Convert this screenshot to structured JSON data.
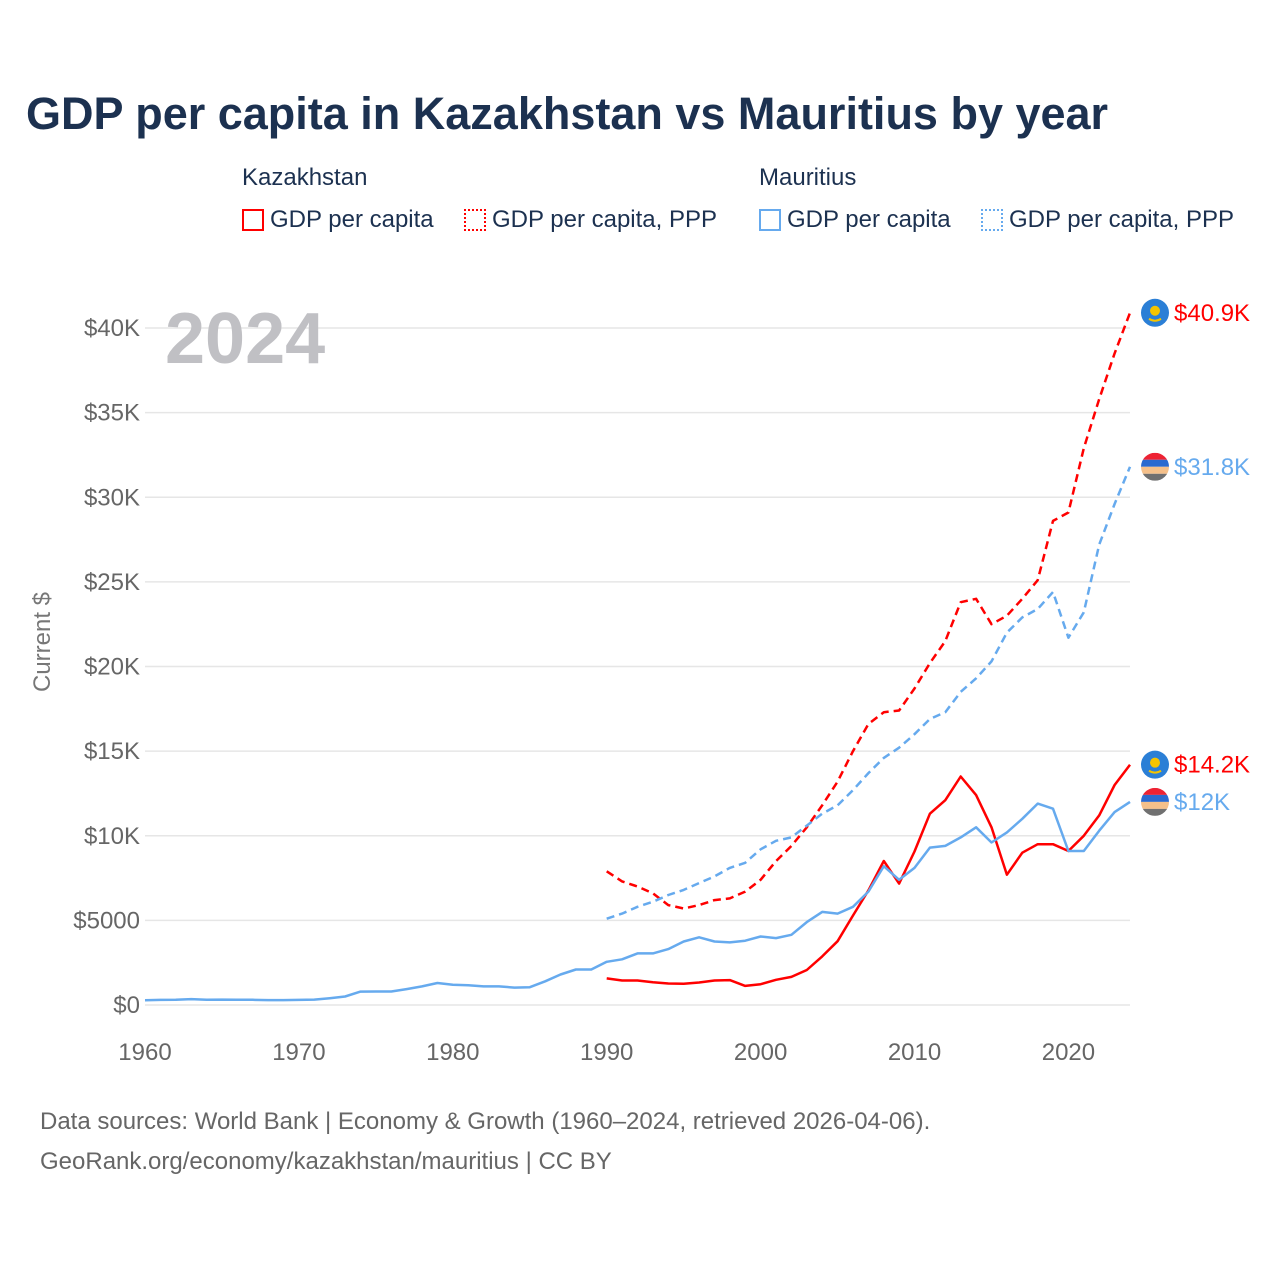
{
  "title": "GDP per capita in Kazakhstan vs Mauritius by year",
  "legend": {
    "groups": [
      {
        "name": "Kazakhstan",
        "items": [
          "GDP per capita",
          "GDP per capita, PPP"
        ]
      },
      {
        "name": "Mauritius",
        "items": [
          "GDP per capita",
          "GDP per capita, PPP"
        ]
      }
    ]
  },
  "year_label": "2024",
  "sources": [
    "Data sources: World Bank | Economy & Growth (1960–2024, retrieved 2026-04-06).",
    "GeoRank.org/economy/kazakhstan/mauritius | CC BY"
  ],
  "colors": {
    "kazakhstan": "#ff0000",
    "mauritius": "#66aaee"
  },
  "chart_data": {
    "type": "line",
    "title": "GDP per capita in Kazakhstan vs Mauritius by year",
    "xlabel": "",
    "ylabel": "Current $",
    "xlim": [
      1960,
      2024
    ],
    "ylim": [
      0,
      40000
    ],
    "xticks": [
      1960,
      1970,
      1980,
      1990,
      2000,
      2010,
      2020
    ],
    "xtick_labels": [
      "1960",
      "1970",
      "1980",
      "1990",
      "2000",
      "2010",
      "2020"
    ],
    "yticks": [
      0,
      5000,
      10000,
      15000,
      20000,
      25000,
      30000,
      35000,
      40000
    ],
    "ytick_labels": [
      "$0",
      "$5000",
      "$10K",
      "$15K",
      "$20K",
      "$25K",
      "$30K",
      "$35K",
      "$40K"
    ],
    "grid": true,
    "series": [
      {
        "name": "Kazakhstan GDP per capita",
        "country": "kazakhstan",
        "dash": false,
        "start": 1990,
        "end_label": "$14.2K",
        "values": [
          1570,
          1450,
          1450,
          1350,
          1270,
          1250,
          1330,
          1450,
          1470,
          1130,
          1230,
          1490,
          1660,
          2070,
          2870,
          3770,
          5290,
          6770,
          8510,
          7170,
          9070,
          11300,
          12100,
          13500,
          12400,
          10500,
          7700,
          9000,
          9500,
          9500,
          9100,
          10000,
          11200,
          13000,
          14200
        ]
      },
      {
        "name": "Kazakhstan GDP per capita, PPP",
        "country": "kazakhstan",
        "dash": true,
        "start": 1990,
        "end_label": "$40.9K",
        "values": [
          7900,
          7300,
          7000,
          6600,
          5900,
          5700,
          5900,
          6200,
          6300,
          6700,
          7400,
          8500,
          9400,
          10500,
          11800,
          13200,
          15000,
          16600,
          17300,
          17400,
          18700,
          20200,
          21500,
          23800,
          24000,
          22500,
          23000,
          24000,
          25100,
          28600,
          29100,
          32900,
          35800,
          38500,
          40900
        ]
      },
      {
        "name": "Mauritius GDP per capita",
        "country": "mauritius",
        "dash": false,
        "start": 1960,
        "end_label": "$12K",
        "values": [
          280,
          300,
          310,
          350,
          310,
          320,
          310,
          310,
          290,
          290,
          300,
          320,
          400,
          500,
          790,
          800,
          800,
          940,
          1100,
          1300,
          1200,
          1170,
          1100,
          1100,
          1030,
          1050,
          1400,
          1800,
          2100,
          2100,
          2550,
          2700,
          3050,
          3050,
          3300,
          3750,
          4000,
          3750,
          3700,
          3800,
          4050,
          3950,
          4150,
          4900,
          5500,
          5400,
          5800,
          6700,
          8200,
          7400,
          8100,
          9300,
          9400,
          9900,
          10500,
          9600,
          10200,
          11000,
          11900,
          11600,
          9100,
          9100,
          10300,
          11400,
          12000
        ]
      },
      {
        "name": "Mauritius GDP per capita, PPP",
        "country": "mauritius",
        "dash": true,
        "start": 1990,
        "end_label": "$31.8K",
        "values": [
          5100,
          5400,
          5800,
          6100,
          6500,
          6800,
          7200,
          7600,
          8100,
          8400,
          9200,
          9700,
          9900,
          10600,
          11300,
          11800,
          12700,
          13700,
          14600,
          15200,
          16000,
          16900,
          17300,
          18500,
          19300,
          20300,
          22000,
          22900,
          23400,
          24400,
          21700,
          23200,
          27200,
          29600,
          31800
        ]
      }
    ]
  }
}
